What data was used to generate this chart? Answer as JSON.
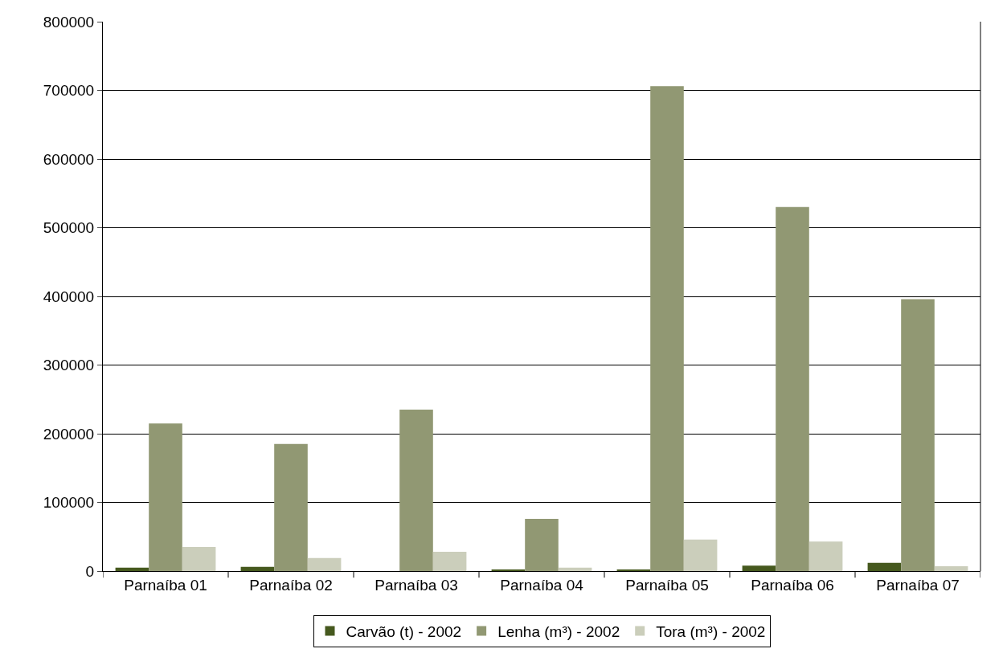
{
  "chart_data": {
    "type": "bar",
    "categories": [
      "Parnaíba 01",
      "Parnaíba 02",
      "Parnaíba 03",
      "Parnaíba 04",
      "Parnaíba 05",
      "Parnaíba 06",
      "Parnaíba 07"
    ],
    "series": [
      {
        "name": "Carvão (t) - 2002",
        "color": "#46591e",
        "values": [
          5000,
          6000,
          0,
          2000,
          2000,
          8000,
          12000
        ]
      },
      {
        "name": "Lenha (m³) - 2002",
        "color": "#919873",
        "values": [
          215000,
          185000,
          235000,
          76000,
          706000,
          530000,
          396000
        ]
      },
      {
        "name": "Tora (m³) - 2002",
        "color": "#cbcebb",
        "values": [
          35000,
          19000,
          28000,
          5000,
          46000,
          43000,
          7000
        ]
      }
    ],
    "ylim": [
      0,
      800000
    ],
    "yticks": [
      0,
      100000,
      200000,
      300000,
      400000,
      500000,
      600000,
      700000,
      800000
    ],
    "grid": "y",
    "legend": "bottom"
  }
}
